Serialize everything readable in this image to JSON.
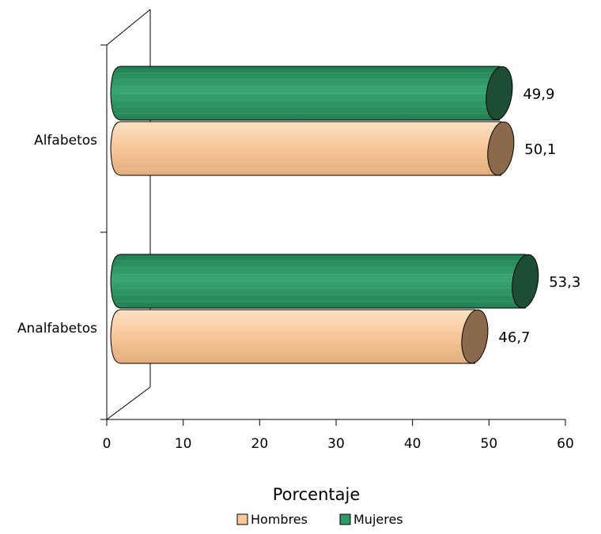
{
  "chart_data": {
    "type": "bar",
    "orientation": "horizontal",
    "style": "3d-cylinder",
    "categories": [
      "Alfabetos",
      "Analfabetos"
    ],
    "series": [
      {
        "name": "Hombres",
        "values": [
          50.1,
          46.7
        ],
        "labels": [
          "50,1",
          "46,7"
        ],
        "color": "#F9C89A",
        "end_color": "#8B6A4C"
      },
      {
        "name": "Mujeres",
        "values": [
          49.9,
          53.3
        ],
        "labels": [
          "49,9",
          "53,3"
        ],
        "color": "#2F9A66",
        "end_color": "#1E4D36"
      }
    ],
    "xlabel": "Porcentaje",
    "xlim": [
      0,
      60
    ],
    "xticks": [
      0,
      10,
      20,
      30,
      40,
      50,
      60
    ],
    "tick_labels": [
      "0",
      "10",
      "20",
      "30",
      "40",
      "50",
      "60"
    ],
    "grid": false,
    "legend": "bottom"
  }
}
